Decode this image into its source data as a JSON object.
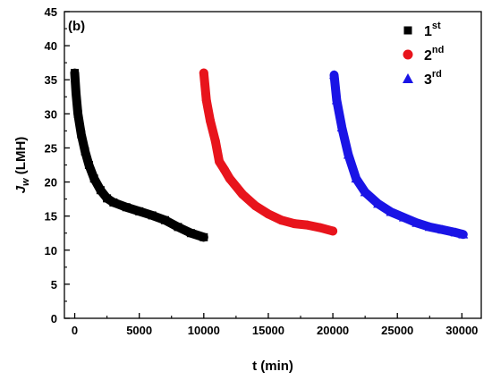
{
  "chart_data": {
    "type": "scatter",
    "panel_label": "(b)",
    "xlabel": "t (min)",
    "ylabel_main": "J",
    "ylabel_sub": "w",
    "ylabel_rest": " (LMH)",
    "xlim": [
      -800,
      31500
    ],
    "ylim": [
      0,
      45
    ],
    "xticks": [
      0,
      5000,
      10000,
      15000,
      20000,
      25000,
      30000
    ],
    "yticks": [
      0,
      5,
      10,
      15,
      20,
      25,
      30,
      35,
      40,
      45
    ],
    "grid": false,
    "legend_position": "top-right",
    "series": [
      {
        "name_main": "1",
        "name_sup": "st",
        "marker": "square",
        "color": "#000000",
        "points": [
          [
            0,
            36
          ],
          [
            100,
            33
          ],
          [
            250,
            30
          ],
          [
            500,
            27
          ],
          [
            800,
            24.5
          ],
          [
            1100,
            22.5
          ],
          [
            1500,
            20.5
          ],
          [
            2000,
            18.8
          ],
          [
            2500,
            17.6
          ],
          [
            3000,
            17.0
          ],
          [
            4000,
            16.3
          ],
          [
            5000,
            15.7
          ],
          [
            6000,
            15.1
          ],
          [
            7000,
            14.4
          ],
          [
            8000,
            13.4
          ],
          [
            9000,
            12.5
          ],
          [
            10000,
            11.9
          ]
        ]
      },
      {
        "name_main": "2",
        "name_sup": "nd",
        "marker": "circle",
        "color": "#e8141c",
        "points": [
          [
            10000,
            36
          ],
          [
            10200,
            32
          ],
          [
            10500,
            29
          ],
          [
            10900,
            26
          ],
          [
            11200,
            23
          ],
          [
            11600,
            21.8
          ],
          [
            12000,
            20.5
          ],
          [
            13000,
            18.2
          ],
          [
            14000,
            16.5
          ],
          [
            15000,
            15.3
          ],
          [
            16000,
            14.4
          ],
          [
            17000,
            13.9
          ],
          [
            18000,
            13.7
          ],
          [
            19000,
            13.3
          ],
          [
            20000,
            12.8
          ]
        ]
      },
      {
        "name_main": "3",
        "name_sup": "rd",
        "marker": "triangle",
        "color": "#1a14e6",
        "points": [
          [
            20100,
            35.7
          ],
          [
            20300,
            32
          ],
          [
            20700,
            28
          ],
          [
            21200,
            24
          ],
          [
            21800,
            20.5
          ],
          [
            22500,
            18.5
          ],
          [
            23500,
            16.8
          ],
          [
            24500,
            15.6
          ],
          [
            25500,
            14.8
          ],
          [
            26500,
            14.0
          ],
          [
            27500,
            13.4
          ],
          [
            28500,
            13.0
          ],
          [
            29500,
            12.6
          ],
          [
            30100,
            12.3
          ]
        ]
      }
    ]
  }
}
